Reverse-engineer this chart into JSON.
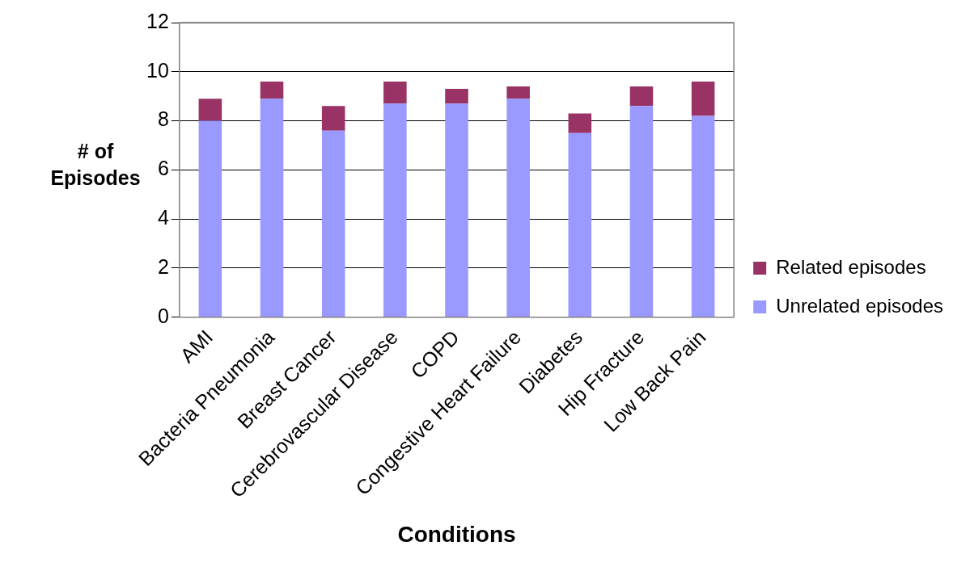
{
  "chart_data": {
    "type": "bar",
    "stacked": true,
    "xlabel": "Conditions",
    "ylabel": "# of Episodes",
    "categories": [
      "AMI",
      "Bacteria Pneumonia",
      "Breast Cancer",
      "Cerebrovascular Disease",
      "COPD",
      "Congestive Heart Failure",
      "Diabetes",
      "Hip Fracture",
      "Low Back Pain"
    ],
    "series": [
      {
        "name": "Unrelated episodes",
        "color": "#9999ff",
        "values": [
          8.0,
          8.9,
          7.6,
          8.7,
          8.7,
          8.9,
          7.5,
          8.6,
          8.2
        ]
      },
      {
        "name": "Related episodes",
        "color": "#993366",
        "values": [
          0.9,
          0.7,
          1.0,
          0.9,
          0.6,
          0.5,
          0.8,
          0.8,
          1.4
        ]
      }
    ],
    "ylim": [
      0,
      12
    ],
    "yticks": [
      0,
      2,
      4,
      6,
      8,
      10,
      12
    ],
    "grid": "y",
    "legend": "right"
  }
}
